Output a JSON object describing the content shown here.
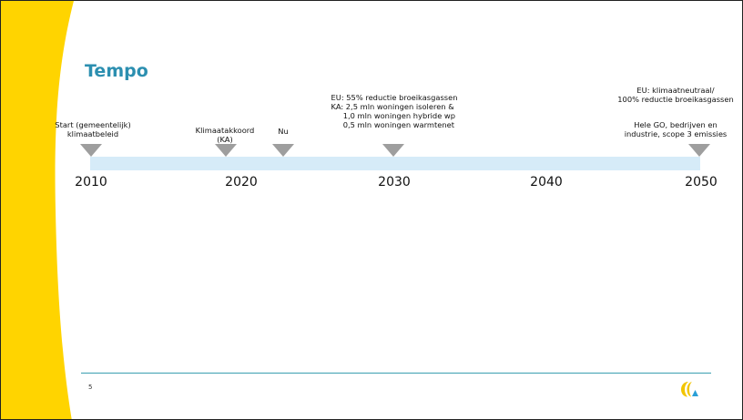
{
  "slide": {
    "title": "Tempo",
    "page_number": "5"
  },
  "timeline": {
    "years": [
      "2010",
      "2020",
      "2030",
      "2040",
      "2050"
    ],
    "events": [
      {
        "id": "start",
        "text": "Start (gemeentelijk)\nklimaatbeleid"
      },
      {
        "id": "ka",
        "text": "Klimaatakkoord\n(KA)"
      },
      {
        "id": "nu",
        "text": "Nu"
      },
      {
        "id": "2030",
        "text": "EU: 55% reductie broeikasgassen\nKA: 2,5 mln woningen isoleren &\n     1,0 mln woningen hybride wp\n     0,5 mln woningen warmtenet"
      },
      {
        "id": "2050a",
        "text": "EU: klimaatneutraal/\n100% reductie broeikasgassen"
      },
      {
        "id": "2050b",
        "text": "Hele GO, bedrijven en\nindustrie, scope 3 emissies"
      }
    ]
  },
  "colors": {
    "title": "#2c8fb0",
    "accent_yellow": "#ffd400",
    "timeline_bar": "#d6ebf8",
    "marker": "#9e9e9e",
    "footer_line": "#3a9fb0",
    "logo_yellow": "#f2c500",
    "logo_blue": "#2a9fd6"
  },
  "logo": {
    "icon": "brand-logo-icon"
  }
}
